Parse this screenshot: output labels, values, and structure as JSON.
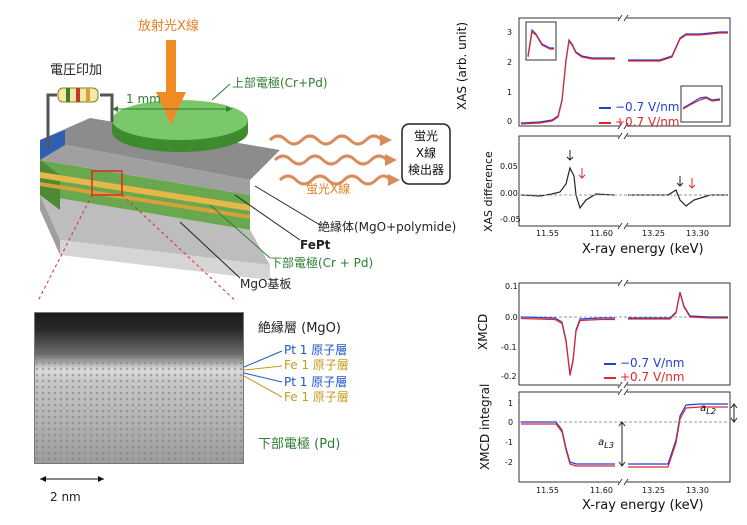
{
  "device": {
    "xray_label": "放射光X線",
    "voltage_label": "電圧印加",
    "width_label": "1 mm",
    "top_electrode": "上部電極(Cr+Pd)",
    "fluorescence": "蛍光X線",
    "detector_lines": [
      "蛍光",
      "X線",
      "検出器"
    ],
    "insulator": "絶縁体(MgO+polymide)",
    "fept": "FePt",
    "bottom_electrode": "下部電極(Cr + Pd)",
    "substrate": "MgO基板"
  },
  "tem": {
    "insulator_layer": "絶縁層 (MgO)",
    "layers": [
      {
        "label": "Pt 1 原子層",
        "color": "#1e56c8"
      },
      {
        "label": "Fe 1 原子層",
        "color": "#c79a1e"
      },
      {
        "label": "Pt 1 原子層",
        "color": "#1e56c8"
      },
      {
        "label": "Fe 1 原子層",
        "color": "#c79a1e"
      }
    ],
    "bottom_electrode": "下部電極 (Pd)",
    "scale_bar": "2 nm"
  },
  "chart_data": [
    {
      "type": "line",
      "panel": "xas",
      "ylabel": "XAS (arb. unit)",
      "yticks": [
        "0",
        "1",
        "2",
        "3"
      ],
      "legend_position": "bottom-right",
      "series": [
        {
          "name": "−0.7 V/nm",
          "color": "#1f3fd6"
        },
        {
          "name": "+0.7 V/nm",
          "color": "#e0282a"
        }
      ],
      "broken_x_axis": true
    },
    {
      "type": "line",
      "panel": "xas-difference",
      "ylabel": "XAS difference",
      "yticks": [
        "0.05",
        "0.00",
        "-0.05"
      ],
      "xlabel": "X-ray energy (keV)",
      "xticks": [
        "11.55",
        "11.60",
        "13.25",
        "13.30"
      ]
    },
    {
      "type": "line",
      "panel": "xmcd",
      "ylabel": "XMCD",
      "yticks": [
        "0.1",
        "0.0",
        "-0.1",
        "-0.2"
      ],
      "legend_position": "bottom-right",
      "series": [
        {
          "name": "−0.7 V/nm",
          "color": "#1f3fd6"
        },
        {
          "name": "+0.7 V/nm",
          "color": "#e0282a"
        }
      ]
    },
    {
      "type": "line",
      "panel": "xmcd-integral",
      "ylabel": "XMCD integral",
      "yticks": [
        "1",
        "0",
        "-1",
        "-2"
      ],
      "annotations": [
        "a_L3",
        "a_L2"
      ],
      "xlabel": "X-ray energy (keV)",
      "xticks": [
        "11.55",
        "11.60",
        "13.25",
        "13.30"
      ]
    }
  ]
}
